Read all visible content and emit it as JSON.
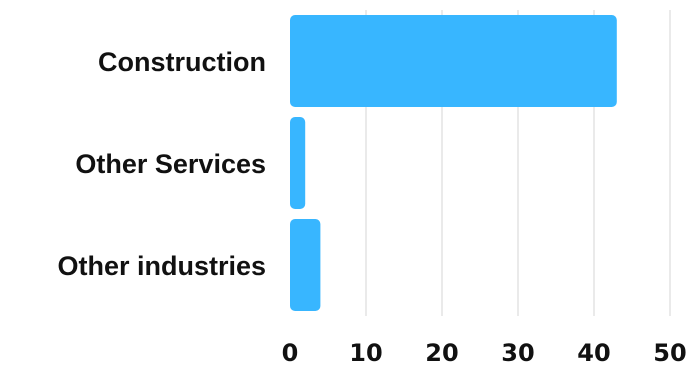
{
  "chart_data": {
    "type": "bar",
    "orientation": "horizontal",
    "categories": [
      "Construction",
      "Other Services",
      "Other industries"
    ],
    "values": [
      43,
      2,
      4
    ],
    "xlim": [
      0,
      50
    ],
    "xticks": [
      "0",
      "10",
      "20",
      "30",
      "40",
      "50"
    ],
    "grid": true,
    "bar_color": "#38b6ff",
    "title": "",
    "xlabel": "",
    "ylabel": ""
  }
}
